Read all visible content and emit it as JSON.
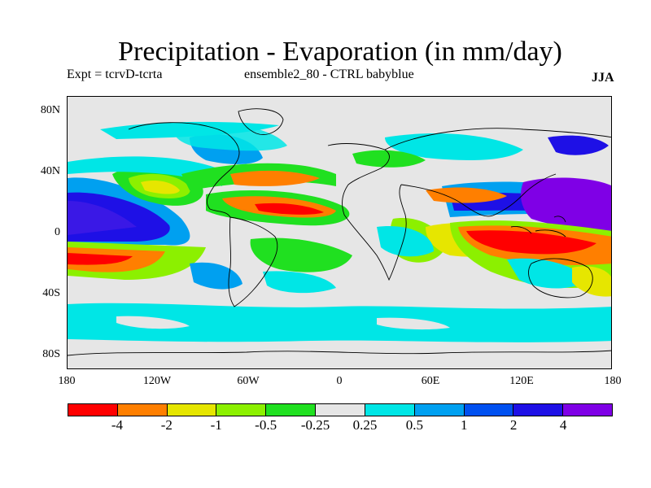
{
  "title": "Precipitation - Evaporation (in mm/day)",
  "subtitle_left": "Expt = tcrvD-tcrta",
  "subtitle_center": "ensemble2_80 - CTRL babyblue",
  "season": "JJA",
  "y_axis_labels": [
    "80N",
    "40N",
    "0",
    "40S",
    "80S"
  ],
  "x_axis_labels": [
    "180",
    "120W",
    "60W",
    "0",
    "60E",
    "120E",
    "180"
  ],
  "colorbar": {
    "colors": [
      "#ff0000",
      "#ff7f00",
      "#e6e600",
      "#8cf000",
      "#20e020",
      "#e6e6e6",
      "#00e6e6",
      "#00a0f0",
      "#0050f0",
      "#1e10e6",
      "#7f00e6"
    ],
    "labels": [
      "-4",
      "-2",
      "-1",
      "-0.5",
      "-0.25",
      "0.25",
      "0.5",
      "1",
      "2",
      "4"
    ]
  },
  "map_data": {
    "variable": "P-E difference",
    "units": "mm/day",
    "lon_range": [
      -180,
      180
    ],
    "lat_range": [
      -90,
      90
    ]
  }
}
